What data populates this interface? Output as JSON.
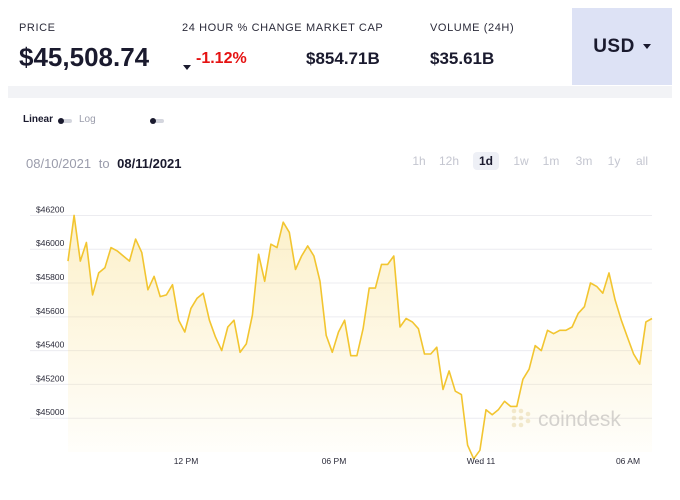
{
  "stats": {
    "price": {
      "label": "PRICE",
      "value": "$45,508.74"
    },
    "change": {
      "label": "24 HOUR % CHANGE",
      "value": "-1.12%"
    },
    "market_cap": {
      "label": "MARKET CAP",
      "value": "$854.71B"
    },
    "volume": {
      "label": "VOLUME (24H)",
      "value": "$35.61B"
    }
  },
  "currency": {
    "selected": "USD"
  },
  "scale": {
    "linear": "Linear",
    "log": "Log"
  },
  "date_range": {
    "from": "08/10/2021",
    "to_word": "to",
    "to": "08/11/2021"
  },
  "ranges": [
    "1h",
    "12h",
    "1d",
    "1w",
    "1m",
    "3m",
    "1y",
    "all"
  ],
  "active_range": "1d",
  "watermark": "coindesk",
  "colors": {
    "line": "#f2c530",
    "negative": "#e51212",
    "currency_bg": "#dde2f5",
    "text": "#1a1a2e"
  },
  "chart_data": {
    "type": "area",
    "x_ticks": [
      "12 PM",
      "06 PM",
      "Wed 11",
      "06 AM"
    ],
    "y_ticks": [
      45000,
      45200,
      45400,
      45600,
      45800,
      46000,
      46200
    ],
    "ylim": [
      44800,
      46250
    ],
    "grid": true,
    "values": [
      45930,
      46200,
      45930,
      46040,
      45730,
      45860,
      45890,
      46010,
      45990,
      45960,
      45930,
      46060,
      45980,
      45760,
      45840,
      45720,
      45730,
      45790,
      45580,
      45510,
      45650,
      45710,
      45740,
      45580,
      45480,
      45400,
      45540,
      45580,
      45390,
      45440,
      45610,
      45970,
      45810,
      46030,
      46010,
      46160,
      46100,
      45880,
      45960,
      46020,
      45960,
      45810,
      45490,
      45390,
      45510,
      45580,
      45370,
      45370,
      45530,
      45770,
      45770,
      45910,
      45910,
      45960,
      45540,
      45590,
      45570,
      45530,
      45380,
      45380,
      45420,
      45170,
      45280,
      45160,
      45140,
      44840,
      44760,
      44810,
      45050,
      45020,
      45050,
      45100,
      45070,
      45070,
      45230,
      45290,
      45430,
      45400,
      45520,
      45500,
      45520,
      45520,
      45540,
      45620,
      45660,
      45800,
      45780,
      45740,
      45860,
      45700,
      45580,
      45480,
      45380,
      45320,
      45570,
      45590
    ]
  }
}
